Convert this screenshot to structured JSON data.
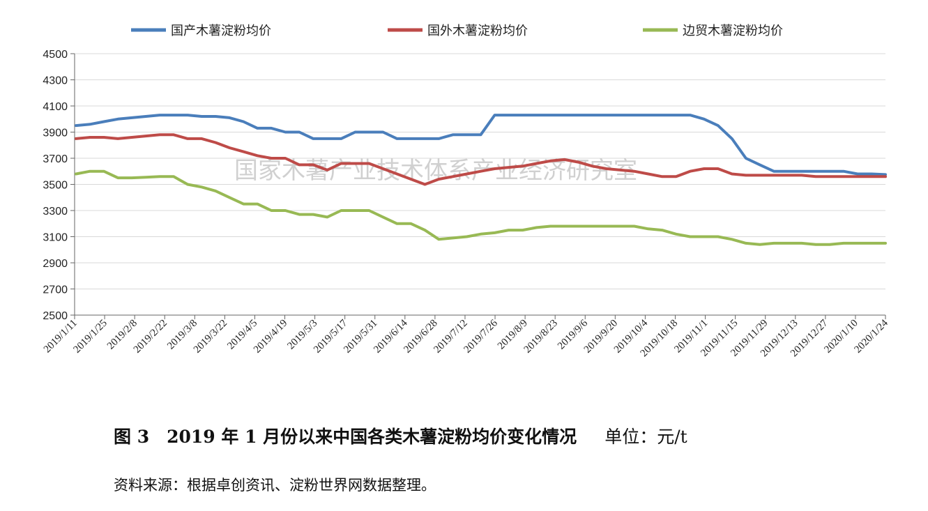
{
  "chart_data": {
    "type": "line",
    "ylim": [
      2500,
      4500
    ],
    "yticks": [
      2500,
      2700,
      2900,
      3100,
      3300,
      3500,
      3700,
      3900,
      4100,
      4300,
      4500
    ],
    "xticks": [
      "2019/1/11",
      "2019/1/25",
      "2019/2/8",
      "2019/2/22",
      "2019/3/8",
      "2019/3/22",
      "2019/4/5",
      "2019/4/19",
      "2019/5/3",
      "2019/5/17",
      "2019/5/31",
      "2019/6/14",
      "2019/6/28",
      "2019/7/12",
      "2019/7/26",
      "2019/8/9",
      "2019/8/23",
      "2019/9/6",
      "2019/9/20",
      "2019/10/4",
      "2019/10/18",
      "2019/11/1",
      "2019/11/15",
      "2019/11/29",
      "2019/12/13",
      "2019/12/27",
      "2020/1/10",
      "2020/1/24"
    ],
    "legend_position": "top",
    "series": [
      {
        "name": "国产木薯淀粉均价",
        "color": "#4a7ebb",
        "values": [
          3950,
          3960,
          3980,
          4000,
          4010,
          4020,
          4030,
          4030,
          4030,
          4020,
          4020,
          4010,
          3980,
          3930,
          3930,
          3900,
          3900,
          3850,
          3850,
          3850,
          3900,
          3900,
          3900,
          3850,
          3850,
          3850,
          3850,
          3880,
          3880,
          3880,
          4030,
          4030,
          4030,
          4030,
          4030,
          4030,
          4030,
          4030,
          4030,
          4030,
          4030,
          4030,
          4030,
          4030,
          4030,
          4000,
          3950,
          3850,
          3700,
          3650,
          3600,
          3600,
          3600,
          3600,
          3600,
          3600,
          3580,
          3580,
          3575
        ]
      },
      {
        "name": "国外木薯淀粉均价",
        "color": "#be4b48",
        "values": [
          3850,
          3860,
          3860,
          3850,
          3860,
          3870,
          3880,
          3880,
          3850,
          3850,
          3820,
          3780,
          3750,
          3720,
          3700,
          3700,
          3650,
          3650,
          3610,
          3660,
          3660,
          3660,
          3620,
          3580,
          3540,
          3500,
          3540,
          3560,
          3580,
          3600,
          3620,
          3630,
          3640,
          3660,
          3680,
          3690,
          3670,
          3640,
          3620,
          3610,
          3600,
          3580,
          3560,
          3560,
          3600,
          3620,
          3620,
          3580,
          3570,
          3570,
          3570,
          3570,
          3570,
          3560,
          3560,
          3560,
          3560,
          3560,
          3560
        ]
      },
      {
        "name": "边贸木薯淀粉均价",
        "color": "#98b954",
        "values": [
          3580,
          3600,
          3600,
          3550,
          3550,
          3555,
          3560,
          3560,
          3500,
          3480,
          3450,
          3400,
          3350,
          3350,
          3300,
          3300,
          3270,
          3270,
          3250,
          3300,
          3300,
          3300,
          3250,
          3200,
          3200,
          3150,
          3080,
          3090,
          3100,
          3120,
          3130,
          3150,
          3150,
          3170,
          3180,
          3180,
          3180,
          3180,
          3180,
          3180,
          3180,
          3160,
          3150,
          3120,
          3100,
          3100,
          3100,
          3080,
          3050,
          3040,
          3050,
          3050,
          3050,
          3040,
          3040,
          3050,
          3050,
          3050,
          3050
        ]
      }
    ]
  },
  "watermark": "国家木薯产业技术体系产业经济研究室",
  "caption": {
    "title": "图 3　2019 年 1 月份以来中国各类木薯淀粉均价变化情况",
    "unit": "单位：元/t"
  },
  "source": "资料来源：根据卓创资讯、淀粉世界网数据整理。"
}
